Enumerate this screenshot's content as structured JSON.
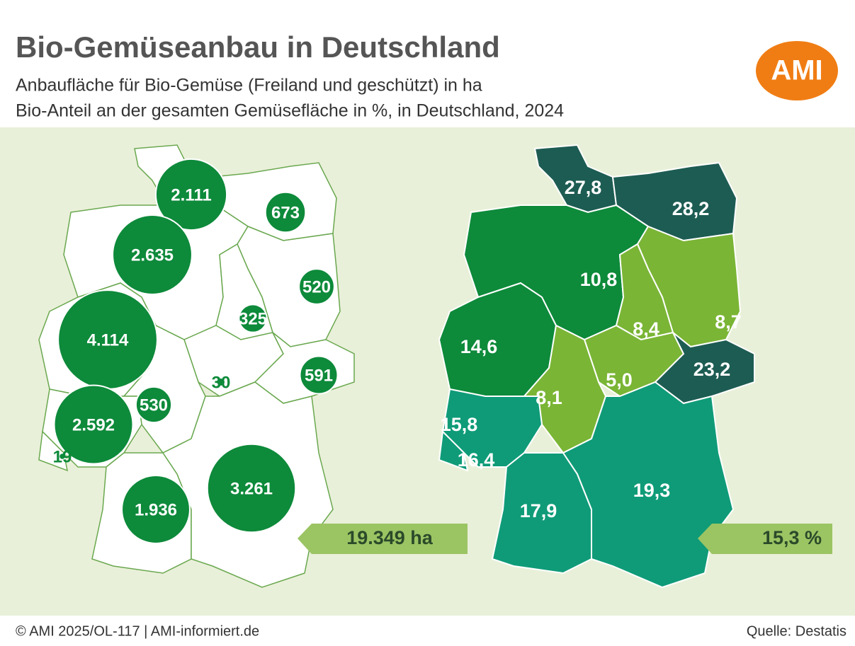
{
  "header": {
    "title": "Bio-Gemüseanbau in Deutschland",
    "subtitles": [
      "Anbaufläche für Bio-Gemüse (Freiland und geschützt) in ha",
      "Bio-Anteil an der gesamten Gemüsefläche in %, in Deutschland, 2024"
    ],
    "logo": "AMI"
  },
  "area_map": {
    "color": "#0d8a3a",
    "regions": [
      {
        "value": 2111,
        "label": "2.111"
      },
      {
        "value": 673,
        "label": "673"
      },
      {
        "value": 2635,
        "label": "2.635"
      },
      {
        "value": 520,
        "label": "520"
      },
      {
        "value": 325,
        "label": "325"
      },
      {
        "value": 4114,
        "label": "4.114"
      },
      {
        "value": 30,
        "label": "30"
      },
      {
        "value": 591,
        "label": "591"
      },
      {
        "value": 530,
        "label": "530"
      },
      {
        "value": 2592,
        "label": "2.592"
      },
      {
        "value": 19,
        "label": "19"
      },
      {
        "value": 1936,
        "label": "1.936"
      },
      {
        "value": 3261,
        "label": "3.261"
      }
    ],
    "total": "19.349 ha"
  },
  "share_map": {
    "regions": [
      {
        "value": 27.8,
        "label": "27,8",
        "color": "#1d5c52"
      },
      {
        "value": 28.2,
        "label": "28,2",
        "color": "#1d5c52"
      },
      {
        "value": 10.8,
        "label": "10,8",
        "color": "#0d8a3a"
      },
      {
        "value": 8.7,
        "label": "8,7",
        "color": "#7ab535"
      },
      {
        "value": 8.4,
        "label": "8,4",
        "color": "#7ab535"
      },
      {
        "value": 14.6,
        "label": "14,6",
        "color": "#0d8a3a"
      },
      {
        "value": 5.0,
        "label": "5,0",
        "color": "#7ab535"
      },
      {
        "value": 23.2,
        "label": "23,2",
        "color": "#1d5c52"
      },
      {
        "value": 8.1,
        "label": "8,1",
        "color": "#7ab535"
      },
      {
        "value": 15.8,
        "label": "15,8",
        "color": "#0f9b78"
      },
      {
        "value": 16.4,
        "label": "16,4",
        "color": "#0f9b78"
      },
      {
        "value": 17.9,
        "label": "17,9",
        "color": "#0f9b78"
      },
      {
        "value": 19.3,
        "label": "19,3",
        "color": "#0f9b78"
      }
    ],
    "total": "15,3 %"
  },
  "footer": {
    "copyright": "© AMI 2025/OL-117 | AMI-informiert.de",
    "source": "Quelle: Destatis"
  }
}
